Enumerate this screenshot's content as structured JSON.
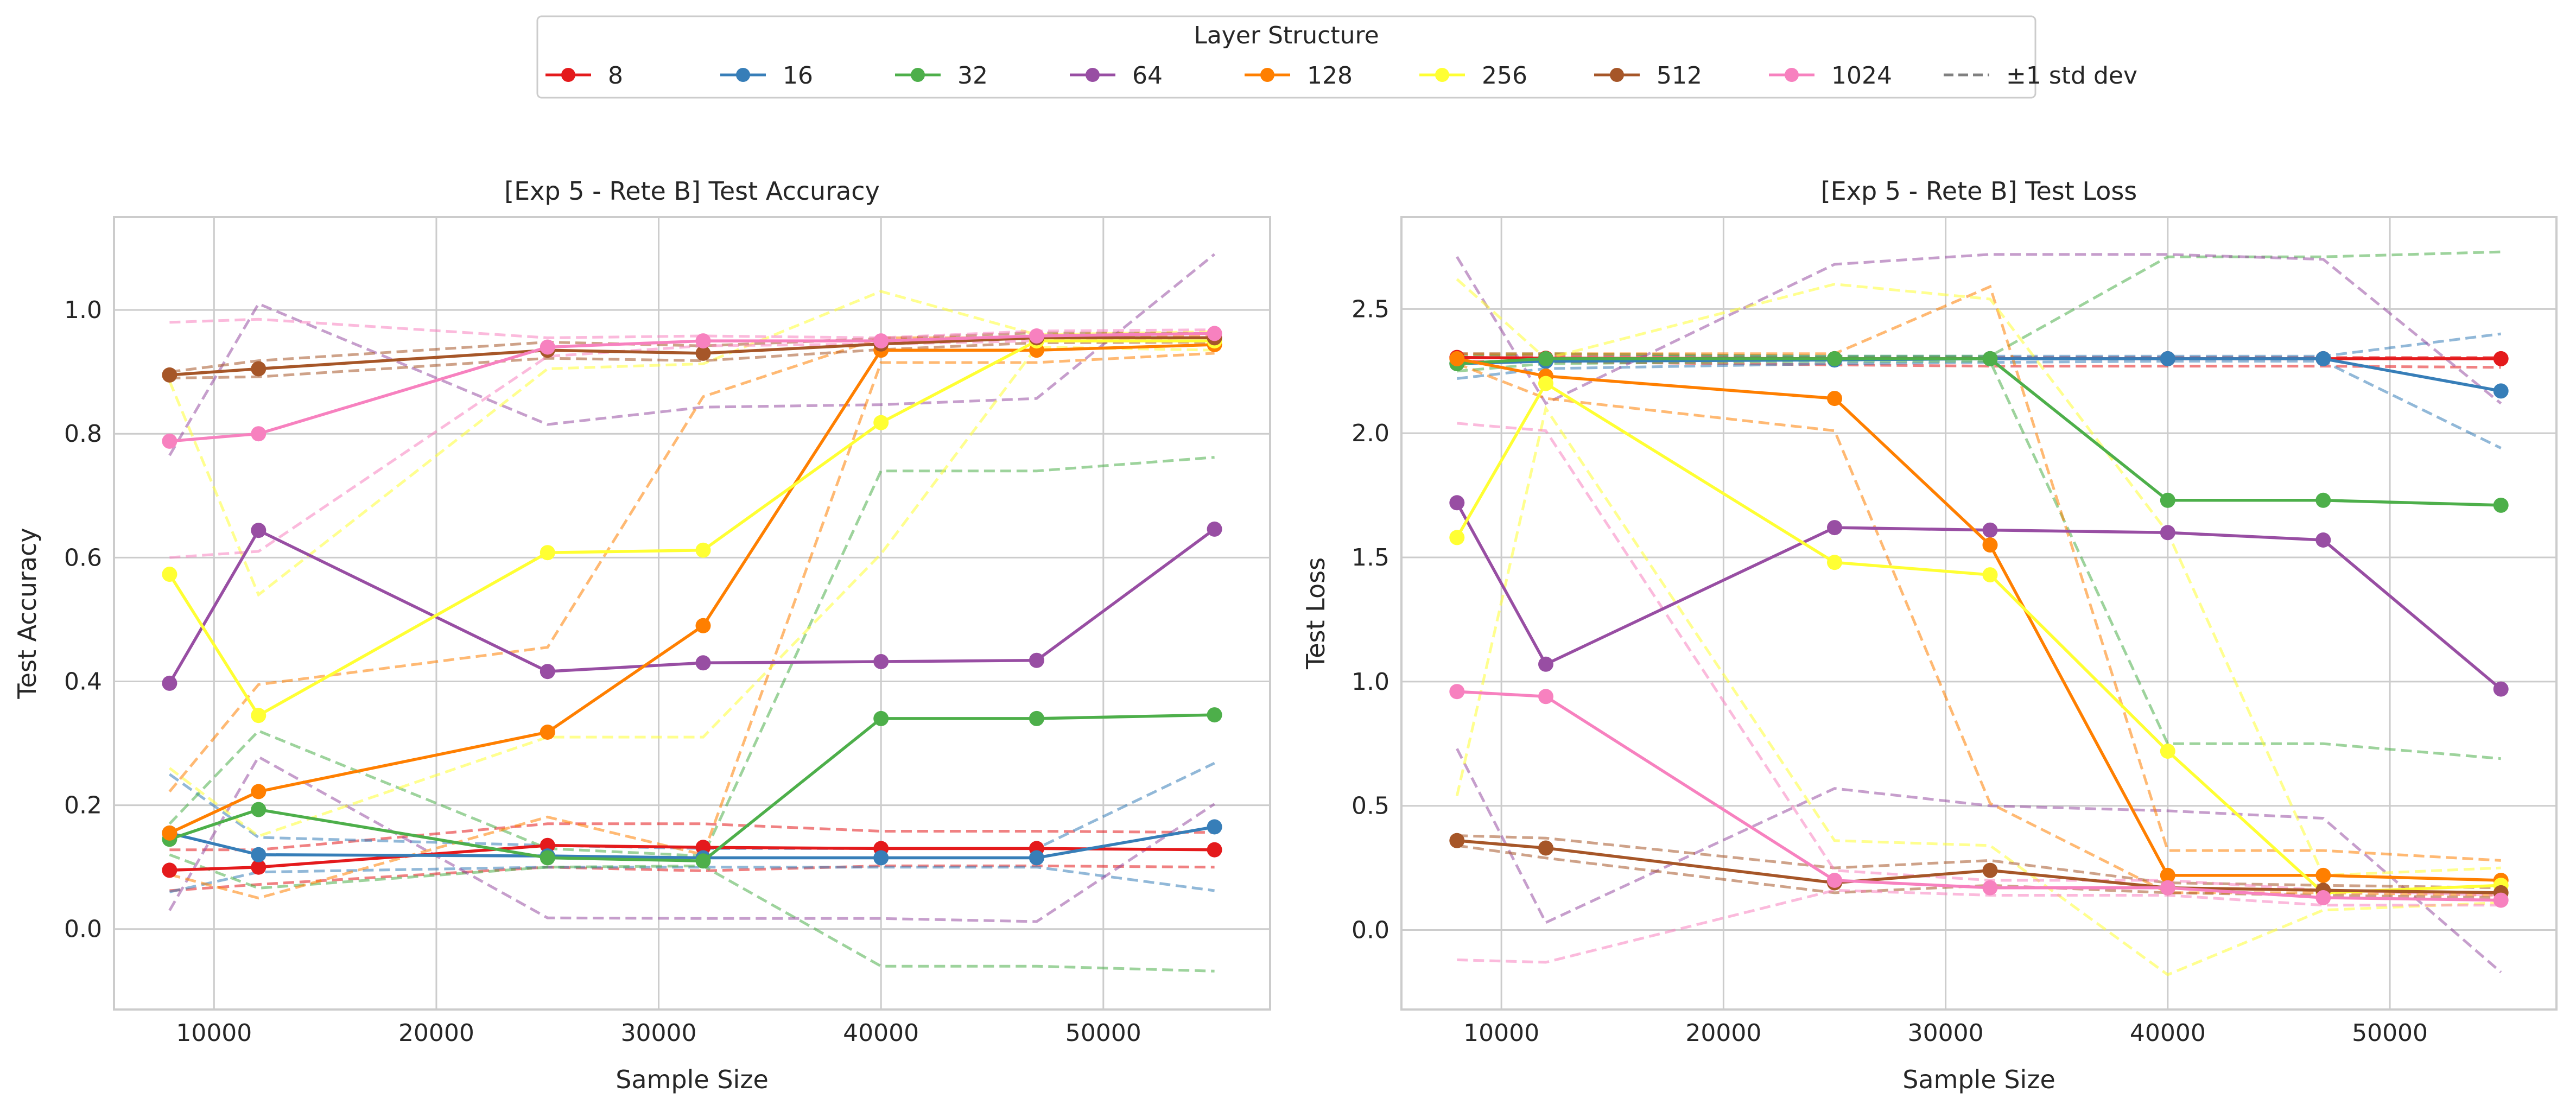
{
  "legend": {
    "title": "Layer Structure",
    "placement": "upper center",
    "entries": [
      {
        "label": "8",
        "color": "#e41a1c",
        "style": "solid-marker"
      },
      {
        "label": "16",
        "color": "#377eb8",
        "style": "solid-marker"
      },
      {
        "label": "32",
        "color": "#4daf4a",
        "style": "solid-marker"
      },
      {
        "label": "64",
        "color": "#984ea3",
        "style": "solid-marker"
      },
      {
        "label": "128",
        "color": "#ff7f00",
        "style": "solid-marker"
      },
      {
        "label": "256",
        "color": "#ffff33",
        "style": "solid-marker"
      },
      {
        "label": "512",
        "color": "#a65628",
        "style": "solid-marker"
      },
      {
        "label": "1024",
        "color": "#f781bf",
        "style": "solid-marker"
      },
      {
        "label": "±1 std dev",
        "color": "#808080",
        "style": "dashed"
      }
    ]
  },
  "chart_data": [
    {
      "type": "line",
      "title": "[Exp 5 - Rete B] Test Accuracy",
      "xlabel": "Sample Size",
      "ylabel": "Test Accuracy",
      "xlim": [
        5500,
        57500
      ],
      "ylim": [
        -0.13,
        1.15
      ],
      "xticks": [
        10000,
        20000,
        30000,
        40000,
        50000
      ],
      "xtick_labels": [
        "10000",
        "20000",
        "30000",
        "40000",
        "50000"
      ],
      "yticks": [
        0.0,
        0.2,
        0.4,
        0.6,
        0.8,
        1.0
      ],
      "ytick_labels": [
        "0.0",
        "0.2",
        "0.4",
        "0.6",
        "0.8",
        "1.0"
      ],
      "grid": true,
      "x": [
        8000,
        12000,
        25000,
        32000,
        40000,
        47000,
        55000
      ],
      "series": [
        {
          "name": "8",
          "color": "#e41a1c",
          "values": [
            0.095,
            0.1,
            0.135,
            0.132,
            0.13,
            0.13,
            0.128
          ],
          "upper": [
            0.128,
            0.128,
            0.17,
            0.17,
            0.158,
            0.158,
            0.156
          ],
          "lower": [
            0.062,
            0.072,
            0.1,
            0.094,
            0.102,
            0.102,
            0.1
          ]
        },
        {
          "name": "16",
          "color": "#377eb8",
          "values": [
            0.155,
            0.12,
            0.118,
            0.115,
            0.115,
            0.115,
            0.165
          ],
          "upper": [
            0.25,
            0.148,
            0.135,
            0.13,
            0.13,
            0.13,
            0.268
          ],
          "lower": [
            0.06,
            0.092,
            0.1,
            0.1,
            0.1,
            0.1,
            0.062
          ]
        },
        {
          "name": "32",
          "color": "#4daf4a",
          "values": [
            0.145,
            0.193,
            0.115,
            0.11,
            0.34,
            0.34,
            0.346
          ],
          "upper": [
            0.17,
            0.32,
            0.13,
            0.118,
            0.74,
            0.74,
            0.762
          ],
          "lower": [
            0.12,
            0.066,
            0.1,
            0.102,
            -0.06,
            -0.06,
            -0.068
          ]
        },
        {
          "name": "64",
          "color": "#984ea3",
          "values": [
            0.397,
            0.644,
            0.416,
            0.43,
            0.432,
            0.434,
            0.646
          ],
          "upper": [
            0.765,
            1.01,
            0.815,
            0.843,
            0.847,
            0.857,
            1.09
          ],
          "lower": [
            0.03,
            0.278,
            0.018,
            0.017,
            0.017,
            0.012,
            0.202
          ]
        },
        {
          "name": "128",
          "color": "#ff7f00",
          "values": [
            0.155,
            0.222,
            0.318,
            0.49,
            0.935,
            0.935,
            0.944
          ],
          "upper": [
            0.222,
            0.395,
            0.455,
            0.86,
            0.955,
            0.955,
            0.958
          ],
          "lower": [
            0.088,
            0.05,
            0.181,
            0.12,
            0.915,
            0.915,
            0.93
          ]
        },
        {
          "name": "256",
          "color": "#ffff33",
          "values": [
            0.573,
            0.345,
            0.608,
            0.612,
            0.818,
            0.95,
            0.95
          ],
          "upper": [
            0.885,
            0.54,
            0.905,
            0.913,
            1.03,
            0.96,
            0.965
          ],
          "lower": [
            0.26,
            0.15,
            0.31,
            0.31,
            0.606,
            0.94,
            0.935
          ]
        },
        {
          "name": "512",
          "color": "#a65628",
          "values": [
            0.895,
            0.905,
            0.935,
            0.93,
            0.945,
            0.955,
            0.955
          ],
          "upper": [
            0.9,
            0.918,
            0.948,
            0.942,
            0.954,
            0.963,
            0.962
          ],
          "lower": [
            0.89,
            0.892,
            0.922,
            0.918,
            0.936,
            0.947,
            0.948
          ]
        },
        {
          "name": "1024",
          "color": "#f781bf",
          "values": [
            0.788,
            0.8,
            0.94,
            0.95,
            0.95,
            0.958,
            0.962
          ],
          "upper": [
            0.98,
            0.985,
            0.955,
            0.958,
            0.955,
            0.966,
            0.968
          ],
          "lower": [
            0.6,
            0.61,
            0.925,
            0.942,
            0.945,
            0.95,
            0.956
          ]
        }
      ]
    },
    {
      "type": "line",
      "title": "[Exp 5 - Rete B] Test Loss",
      "xlabel": "Sample Size",
      "ylabel": "Test Loss",
      "xlim": [
        5500,
        57500
      ],
      "ylim": [
        -0.32,
        2.87
      ],
      "xticks": [
        10000,
        20000,
        30000,
        40000,
        50000
      ],
      "xtick_labels": [
        "10000",
        "20000",
        "30000",
        "40000",
        "50000"
      ],
      "yticks": [
        0.0,
        0.5,
        1.0,
        1.5,
        2.0,
        2.5
      ],
      "ytick_labels": [
        "0.0",
        "0.5",
        "1.0",
        "1.5",
        "2.0",
        "2.5"
      ],
      "grid": true,
      "x": [
        8000,
        12000,
        25000,
        32000,
        40000,
        47000,
        55000
      ],
      "series": [
        {
          "name": "8",
          "color": "#e41a1c",
          "values": [
            2.305,
            2.302,
            2.3,
            2.3,
            2.3,
            2.3,
            2.3
          ],
          "upper": [
            2.32,
            2.31,
            2.305,
            2.305,
            2.305,
            2.305,
            2.305
          ],
          "lower": [
            2.29,
            2.288,
            2.275,
            2.27,
            2.27,
            2.27,
            2.265
          ]
        },
        {
          "name": "16",
          "color": "#377eb8",
          "values": [
            2.28,
            2.29,
            2.295,
            2.3,
            2.3,
            2.3,
            2.17
          ],
          "upper": [
            2.32,
            2.32,
            2.31,
            2.31,
            2.31,
            2.31,
            2.4
          ],
          "lower": [
            2.22,
            2.26,
            2.28,
            2.285,
            2.29,
            2.29,
            1.94
          ]
        },
        {
          "name": "32",
          "color": "#4daf4a",
          "values": [
            2.28,
            2.3,
            2.3,
            2.3,
            1.73,
            1.73,
            1.71
          ],
          "upper": [
            2.31,
            2.32,
            2.31,
            2.31,
            2.71,
            2.71,
            2.73
          ],
          "lower": [
            2.25,
            2.28,
            2.29,
            2.29,
            0.75,
            0.75,
            0.69
          ]
        },
        {
          "name": "64",
          "color": "#984ea3",
          "values": [
            1.72,
            1.07,
            1.62,
            1.61,
            1.6,
            1.57,
            0.97
          ],
          "upper": [
            2.71,
            2.12,
            2.68,
            2.72,
            2.72,
            2.7,
            2.12
          ],
          "lower": [
            0.73,
            0.03,
            0.57,
            0.5,
            0.48,
            0.45,
            -0.17
          ]
        },
        {
          "name": "128",
          "color": "#ff7f00",
          "values": [
            2.3,
            2.23,
            2.14,
            1.55,
            0.22,
            0.22,
            0.2
          ],
          "upper": [
            2.32,
            2.32,
            2.32,
            2.59,
            0.32,
            0.32,
            0.28
          ],
          "lower": [
            2.28,
            2.14,
            2.01,
            0.51,
            0.15,
            0.15,
            0.14
          ]
        },
        {
          "name": "256",
          "color": "#ffff33",
          "values": [
            1.58,
            2.2,
            1.48,
            1.43,
            0.72,
            0.15,
            0.18
          ],
          "upper": [
            2.62,
            2.3,
            2.6,
            2.54,
            1.6,
            0.22,
            0.25
          ],
          "lower": [
            0.54,
            2.1,
            0.36,
            0.34,
            -0.18,
            0.08,
            0.11
          ]
        },
        {
          "name": "512",
          "color": "#a65628",
          "values": [
            0.36,
            0.33,
            0.19,
            0.24,
            0.17,
            0.16,
            0.15
          ],
          "upper": [
            0.38,
            0.37,
            0.25,
            0.28,
            0.19,
            0.18,
            0.17
          ],
          "lower": [
            0.34,
            0.29,
            0.15,
            0.18,
            0.15,
            0.14,
            0.13
          ]
        },
        {
          "name": "1024",
          "color": "#f781bf",
          "values": [
            0.96,
            0.94,
            0.2,
            0.17,
            0.17,
            0.13,
            0.12
          ],
          "upper": [
            2.04,
            2.01,
            0.24,
            0.2,
            0.2,
            0.16,
            0.14
          ],
          "lower": [
            -0.12,
            -0.13,
            0.16,
            0.14,
            0.14,
            0.1,
            0.1
          ]
        }
      ]
    }
  ]
}
